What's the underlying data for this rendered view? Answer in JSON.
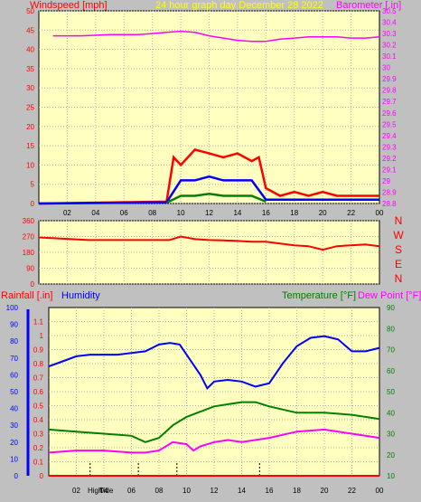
{
  "chart_data": [
    {
      "type": "line",
      "title": "24 hour graph day   December 28 2022",
      "ylabel_left": "Windspeed [mph]",
      "ylabel_right": "Barometer [.in]",
      "x_tick_labels": [
        "02",
        "04",
        "06",
        "08",
        "10",
        "12",
        "14",
        "16",
        "18",
        "20",
        "22",
        "00"
      ],
      "left_axis": {
        "ticks": [
          0,
          5,
          10,
          15,
          20,
          25,
          30,
          35,
          40,
          45,
          50
        ],
        "ylim": [
          0,
          50
        ]
      },
      "right_axis": {
        "ticks": [
          "28.8",
          "28.9",
          "29",
          "29.1",
          "29.2",
          "29.3",
          "29.4",
          "29.5",
          "29.6",
          "29.7",
          "29.8",
          "29.9",
          "30",
          "30.1",
          "30.2",
          "30.3",
          "30.4",
          "30.5"
        ],
        "ylim": [
          28.8,
          30.5
        ]
      },
      "series": [
        {
          "color": "#ff00ff",
          "axis": "right",
          "x": [
            1,
            3,
            5,
            7,
            8,
            9,
            10,
            11,
            12,
            13,
            14,
            15,
            16,
            17,
            18,
            19,
            20,
            21,
            22,
            23,
            24
          ],
          "y": [
            30.28,
            30.28,
            30.29,
            30.29,
            30.3,
            30.31,
            30.32,
            30.31,
            30.28,
            30.26,
            30.24,
            30.23,
            30.23,
            30.25,
            30.26,
            30.27,
            30.27,
            30.27,
            30.26,
            30.26,
            30.27
          ]
        },
        {
          "color": "#ff0000",
          "axis": "left",
          "x": [
            0,
            9,
            9.5,
            10,
            11,
            12,
            13,
            14,
            15,
            15.5,
            16,
            17,
            18,
            19,
            20,
            21,
            22,
            23,
            24
          ],
          "y": [
            0,
            0.5,
            12,
            10,
            14,
            13,
            12,
            13,
            11,
            12,
            4,
            2,
            3,
            2,
            3,
            2,
            2,
            2,
            2
          ]
        },
        {
          "color": "#0000ff",
          "axis": "left",
          "x": [
            0,
            9,
            10,
            11,
            12,
            13,
            14,
            15,
            16,
            17,
            18,
            19,
            20,
            21,
            22,
            23,
            24
          ],
          "y": [
            0,
            0.3,
            6,
            6,
            7,
            6,
            6,
            6,
            1,
            1,
            1,
            1,
            1,
            1,
            1,
            1,
            1
          ]
        },
        {
          "color": "#008000",
          "axis": "left",
          "x": [
            9,
            10,
            11,
            12,
            13,
            14,
            15,
            16
          ],
          "y": [
            0.2,
            2,
            2,
            2.5,
            2,
            2,
            2,
            0.5
          ]
        }
      ]
    },
    {
      "type": "line",
      "ylabel_right": [
        "N",
        "W",
        "S",
        "E",
        "N"
      ],
      "y_ticks": [
        0,
        90,
        180,
        270,
        360
      ],
      "ylim": [
        0,
        360
      ],
      "series": [
        {
          "color": "#ff0000",
          "x": [
            0,
            3.5,
            9.2,
            10,
            11,
            12,
            13,
            14,
            15,
            16,
            17,
            18,
            19,
            20,
            21,
            22,
            23,
            24
          ],
          "y": [
            265,
            250,
            250,
            270,
            255,
            250,
            248,
            245,
            240,
            240,
            230,
            220,
            215,
            195,
            215,
            220,
            225,
            215
          ]
        }
      ]
    },
    {
      "type": "line",
      "ylabel_left_1": "Rainfall [.in]",
      "ylabel_left_2": "Humidity",
      "ylabel_right_1": "Temperature [°F]",
      "ylabel_right_2": "Dew Point [°F]",
      "x_tick_labels": [
        "02",
        "04",
        "06",
        "08",
        "10",
        "12",
        "14",
        "16",
        "18",
        "20",
        "22",
        "00"
      ],
      "axis_humidity": {
        "ticks": [
          0,
          10,
          20,
          30,
          40,
          50,
          60,
          70,
          80,
          90,
          100
        ],
        "ylim": [
          0,
          100
        ]
      },
      "axis_rain": {
        "ticks": [
          "0",
          "0.1",
          "0.2",
          "0.3",
          "0.4",
          "0.5",
          "0.6",
          "0.7",
          "0.8",
          "0.9",
          "1",
          "1.1"
        ],
        "ylim": [
          0,
          1.2
        ]
      },
      "axis_temp": {
        "ticks": [
          10,
          20,
          30,
          40,
          50,
          60,
          70,
          80,
          90
        ],
        "ylim": [
          10,
          90
        ]
      },
      "markers": [
        "High",
        "Tide"
      ],
      "series": [
        {
          "name": "Humidity",
          "color": "#0000ff",
          "axis": "humidity",
          "x": [
            0,
            1,
            2,
            3,
            4,
            5,
            6,
            7,
            8,
            8.8,
            9.5,
            10,
            11,
            11.5,
            12,
            13,
            14,
            15,
            16,
            17,
            18,
            19,
            20,
            21,
            22,
            23,
            24
          ],
          "y": [
            65,
            68,
            71,
            72,
            72,
            72,
            73,
            74,
            78,
            79,
            78,
            72,
            60,
            52,
            56,
            57,
            56,
            53,
            55,
            67,
            77,
            82,
            83,
            81,
            74,
            74,
            76
          ]
        },
        {
          "name": "Temperature",
          "color": "#008000",
          "axis": "temp",
          "x": [
            0,
            2,
            4,
            6,
            7,
            8,
            9,
            10,
            12,
            14,
            15,
            16,
            18,
            20,
            22,
            24
          ],
          "y": [
            32,
            31,
            30,
            29,
            26,
            28,
            34,
            38,
            43,
            45,
            45,
            43,
            40,
            40,
            39,
            37
          ]
        },
        {
          "name": "Dew Point",
          "color": "#ff00ff",
          "axis": "temp",
          "x": [
            0,
            2,
            4,
            6,
            7,
            8,
            9,
            10,
            10.5,
            11,
            12,
            13,
            14,
            16,
            18,
            20,
            22,
            24
          ],
          "y": [
            21,
            22,
            22,
            21,
            21,
            22,
            26,
            25,
            22,
            24,
            26,
            27,
            26,
            28,
            31,
            32,
            30,
            28
          ]
        },
        {
          "name": "Rainfall",
          "color": "#ff0000",
          "axis": "rain",
          "x": [
            0,
            24
          ],
          "y": [
            0,
            0
          ]
        }
      ]
    }
  ],
  "colors": {
    "plot_bg": "#ffffc0",
    "grid": "#a0a0a0",
    "frame": "#000000"
  }
}
